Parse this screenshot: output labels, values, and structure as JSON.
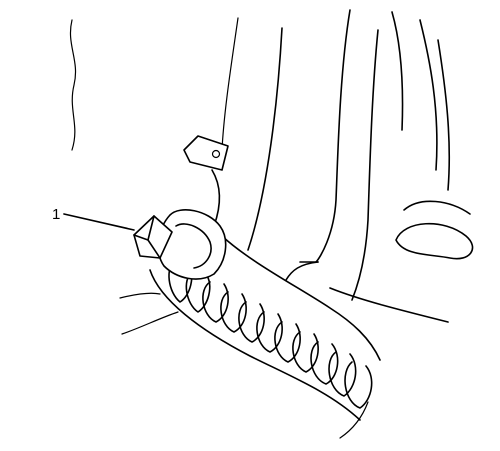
{
  "callouts": [
    {
      "number": "1"
    }
  ],
  "colors": {
    "line": "#000000",
    "background": "#ffffff"
  }
}
